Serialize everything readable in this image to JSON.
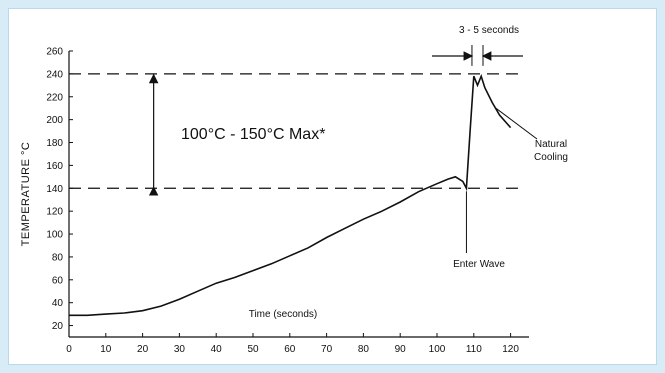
{
  "chart_data": {
    "type": "line",
    "title": "",
    "xlabel": "Time (seconds)",
    "ylabel": "TEMPERATURE °C",
    "xlim": [
      0,
      125
    ],
    "ylim": [
      10,
      260
    ],
    "xticks": [
      0,
      10,
      20,
      30,
      40,
      50,
      60,
      70,
      80,
      90,
      100,
      110,
      120
    ],
    "yticks": [
      20,
      40,
      60,
      80,
      100,
      120,
      140,
      160,
      180,
      200,
      220,
      240,
      260
    ],
    "grid": false,
    "series": [
      {
        "x": [
          0,
          5,
          10,
          15,
          20,
          25,
          30,
          35,
          40,
          45,
          50,
          55,
          60,
          65,
          70,
          75,
          80,
          85,
          90,
          95,
          100,
          103,
          105,
          107,
          108,
          109,
          110,
          111,
          112,
          113,
          115,
          117,
          120
        ],
        "y": [
          29,
          29,
          30,
          31,
          33,
          37,
          43,
          50,
          57,
          62,
          68,
          74,
          81,
          88,
          97,
          105,
          113,
          120,
          128,
          137,
          144,
          148,
          150,
          146,
          140,
          190,
          238,
          230,
          238,
          228,
          215,
          204,
          193
        ]
      }
    ],
    "reference_lines": [
      {
        "y": 240,
        "style": "dashed"
      },
      {
        "y": 140,
        "style": "dashed"
      }
    ],
    "annotations": {
      "range_label": "100°C - 150°C Max*",
      "dwell_label": "3 - 5 seconds",
      "cooling_label_1": "Natural",
      "cooling_label_2": "Cooling",
      "enter_label": "Enter Wave"
    }
  }
}
